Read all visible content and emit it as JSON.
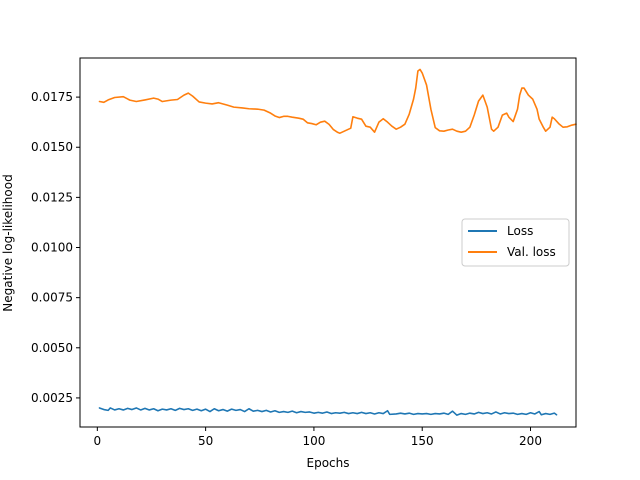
{
  "chart_data": {
    "type": "line",
    "title": "",
    "xlabel": "Epochs",
    "ylabel": "Negative log-likelihood",
    "xlim": [
      -8,
      221
    ],
    "ylim": [
      0.00105,
      0.01945
    ],
    "xticks": [
      0,
      50,
      100,
      150,
      200
    ],
    "yticks": [
      0.0025,
      0.005,
      0.0075,
      0.01,
      0.0125,
      0.015,
      0.0175
    ],
    "ytick_labels": [
      "0.0025",
      "0.0050",
      "0.0075",
      "0.0100",
      "0.0125",
      "0.0150",
      "0.0175"
    ],
    "grid": false,
    "legend": "center-right",
    "series": [
      {
        "name": "Loss",
        "color": "#1f77b4",
        "points": [
          [
            1,
            0.002
          ],
          [
            3,
            0.00192
          ],
          [
            5,
            0.00188
          ],
          [
            6,
            0.002
          ],
          [
            8,
            0.0019
          ],
          [
            10,
            0.00196
          ],
          [
            12,
            0.0019
          ],
          [
            14,
            0.00198
          ],
          [
            16,
            0.00192
          ],
          [
            18,
            0.002
          ],
          [
            20,
            0.0019
          ],
          [
            22,
            0.00198
          ],
          [
            24,
            0.0019
          ],
          [
            26,
            0.00196
          ],
          [
            28,
            0.00186
          ],
          [
            30,
            0.00194
          ],
          [
            32,
            0.0019
          ],
          [
            34,
            0.00196
          ],
          [
            36,
            0.00188
          ],
          [
            38,
            0.00198
          ],
          [
            40,
            0.00192
          ],
          [
            42,
            0.00196
          ],
          [
            44,
            0.00188
          ],
          [
            46,
            0.00194
          ],
          [
            48,
            0.00186
          ],
          [
            50,
            0.00194
          ],
          [
            52,
            0.00182
          ],
          [
            54,
            0.00196
          ],
          [
            56,
            0.00186
          ],
          [
            58,
            0.00192
          ],
          [
            60,
            0.00184
          ],
          [
            62,
            0.00194
          ],
          [
            64,
            0.00188
          ],
          [
            66,
            0.00192
          ],
          [
            68,
            0.00182
          ],
          [
            70,
            0.00196
          ],
          [
            72,
            0.00184
          ],
          [
            74,
            0.00188
          ],
          [
            76,
            0.00182
          ],
          [
            78,
            0.00188
          ],
          [
            80,
            0.0018
          ],
          [
            82,
            0.00186
          ],
          [
            84,
            0.00178
          ],
          [
            86,
            0.00182
          ],
          [
            88,
            0.00178
          ],
          [
            90,
            0.00184
          ],
          [
            92,
            0.00176
          ],
          [
            94,
            0.00182
          ],
          [
            96,
            0.00178
          ],
          [
            98,
            0.0018
          ],
          [
            100,
            0.00174
          ],
          [
            102,
            0.00178
          ],
          [
            104,
            0.00174
          ],
          [
            106,
            0.0018
          ],
          [
            108,
            0.00172
          ],
          [
            110,
            0.00176
          ],
          [
            112,
            0.00174
          ],
          [
            114,
            0.00178
          ],
          [
            116,
            0.00172
          ],
          [
            118,
            0.00176
          ],
          [
            120,
            0.00172
          ],
          [
            122,
            0.00178
          ],
          [
            124,
            0.00172
          ],
          [
            126,
            0.00176
          ],
          [
            128,
            0.0017
          ],
          [
            130,
            0.00176
          ],
          [
            132,
            0.00172
          ],
          [
            134,
            0.00186
          ],
          [
            135,
            0.00168
          ],
          [
            138,
            0.0017
          ],
          [
            140,
            0.00174
          ],
          [
            142,
            0.0017
          ],
          [
            144,
            0.00174
          ],
          [
            146,
            0.00168
          ],
          [
            148,
            0.00172
          ],
          [
            150,
            0.0017
          ],
          [
            152,
            0.00172
          ],
          [
            154,
            0.00168
          ],
          [
            156,
            0.00172
          ],
          [
            158,
            0.0017
          ],
          [
            160,
            0.00174
          ],
          [
            162,
            0.00168
          ],
          [
            164,
            0.00184
          ],
          [
            166,
            0.00164
          ],
          [
            168,
            0.00172
          ],
          [
            170,
            0.00168
          ],
          [
            172,
            0.00174
          ],
          [
            174,
            0.0017
          ],
          [
            176,
            0.00178
          ],
          [
            178,
            0.00172
          ],
          [
            180,
            0.00176
          ],
          [
            182,
            0.0017
          ],
          [
            184,
            0.0018
          ],
          [
            186,
            0.0017
          ],
          [
            188,
            0.00176
          ],
          [
            190,
            0.00172
          ],
          [
            192,
            0.00174
          ],
          [
            194,
            0.00168
          ],
          [
            196,
            0.00172
          ],
          [
            198,
            0.00168
          ],
          [
            200,
            0.00176
          ],
          [
            202,
            0.0017
          ],
          [
            204,
            0.00182
          ],
          [
            205,
            0.00166
          ],
          [
            207,
            0.00172
          ],
          [
            209,
            0.00168
          ],
          [
            211,
            0.00174
          ],
          [
            212,
            0.00166
          ]
        ]
      },
      {
        "name": "Val. loss",
        "color": "#ff7f0e",
        "points": [
          [
            1,
            0.01728
          ],
          [
            3,
            0.01724
          ],
          [
            5,
            0.01736
          ],
          [
            8,
            0.01748
          ],
          [
            12,
            0.01752
          ],
          [
            15,
            0.01735
          ],
          [
            18,
            0.01728
          ],
          [
            22,
            0.01736
          ],
          [
            26,
            0.01745
          ],
          [
            28,
            0.0174
          ],
          [
            30,
            0.01728
          ],
          [
            34,
            0.01735
          ],
          [
            37,
            0.01738
          ],
          [
            40,
            0.0176
          ],
          [
            42,
            0.0177
          ],
          [
            44,
            0.01755
          ],
          [
            47,
            0.01726
          ],
          [
            50,
            0.0172
          ],
          [
            53,
            0.01716
          ],
          [
            56,
            0.01722
          ],
          [
            60,
            0.0171
          ],
          [
            63,
            0.017
          ],
          [
            67,
            0.01696
          ],
          [
            70,
            0.01692
          ],
          [
            74,
            0.0169
          ],
          [
            77,
            0.01685
          ],
          [
            80,
            0.0167
          ],
          [
            82,
            0.01656
          ],
          [
            84,
            0.01648
          ],
          [
            86,
            0.01654
          ],
          [
            88,
            0.01654
          ],
          [
            90,
            0.0165
          ],
          [
            93,
            0.01645
          ],
          [
            95,
            0.0164
          ],
          [
            97,
            0.01622
          ],
          [
            99,
            0.01618
          ],
          [
            101,
            0.01612
          ],
          [
            103,
            0.01625
          ],
          [
            105,
            0.0163
          ],
          [
            107,
            0.01614
          ],
          [
            109,
            0.01588
          ],
          [
            111,
            0.01574
          ],
          [
            112,
            0.0157
          ],
          [
            114,
            0.0158
          ],
          [
            116,
            0.0159
          ],
          [
            117,
            0.01595
          ],
          [
            118,
            0.01652
          ],
          [
            120,
            0.01645
          ],
          [
            122,
            0.0164
          ],
          [
            124,
            0.01605
          ],
          [
            126,
            0.016
          ],
          [
            128,
            0.01575
          ],
          [
            130,
            0.01625
          ],
          [
            132,
            0.01642
          ],
          [
            134,
            0.01625
          ],
          [
            136,
            0.01605
          ],
          [
            138,
            0.0159
          ],
          [
            140,
            0.016
          ],
          [
            142,
            0.01615
          ],
          [
            144,
            0.01665
          ],
          [
            146,
            0.0174
          ],
          [
            147,
            0.01795
          ],
          [
            148,
            0.0188
          ],
          [
            149,
            0.01888
          ],
          [
            150,
            0.0187
          ],
          [
            152,
            0.0181
          ],
          [
            154,
            0.0169
          ],
          [
            156,
            0.01598
          ],
          [
            158,
            0.01582
          ],
          [
            160,
            0.0158
          ],
          [
            162,
            0.01586
          ],
          [
            164,
            0.0159
          ],
          [
            166,
            0.0158
          ],
          [
            168,
            0.01575
          ],
          [
            170,
            0.0158
          ],
          [
            172,
            0.016
          ],
          [
            174,
            0.0166
          ],
          [
            176,
            0.0173
          ],
          [
            178,
            0.0176
          ],
          [
            180,
            0.017
          ],
          [
            182,
            0.0159
          ],
          [
            183,
            0.0158
          ],
          [
            185,
            0.016
          ],
          [
            187,
            0.0166
          ],
          [
            189,
            0.0167
          ],
          [
            190,
            0.0165
          ],
          [
            192,
            0.01628
          ],
          [
            194,
            0.0169
          ],
          [
            195,
            0.0176
          ],
          [
            196,
            0.01795
          ],
          [
            197,
            0.01795
          ],
          [
            199,
            0.0176
          ],
          [
            201,
            0.0174
          ],
          [
            203,
            0.0169
          ],
          [
            204,
            0.0164
          ],
          [
            206,
            0.01598
          ],
          [
            207,
            0.0158
          ],
          [
            209,
            0.016
          ],
          [
            210,
            0.0165
          ],
          [
            211,
            0.01642
          ],
          [
            213,
            0.01618
          ],
          [
            215,
            0.016
          ],
          [
            217,
            0.01602
          ],
          [
            219,
            0.0161
          ],
          [
            221,
            0.01615
          ]
        ]
      }
    ]
  }
}
